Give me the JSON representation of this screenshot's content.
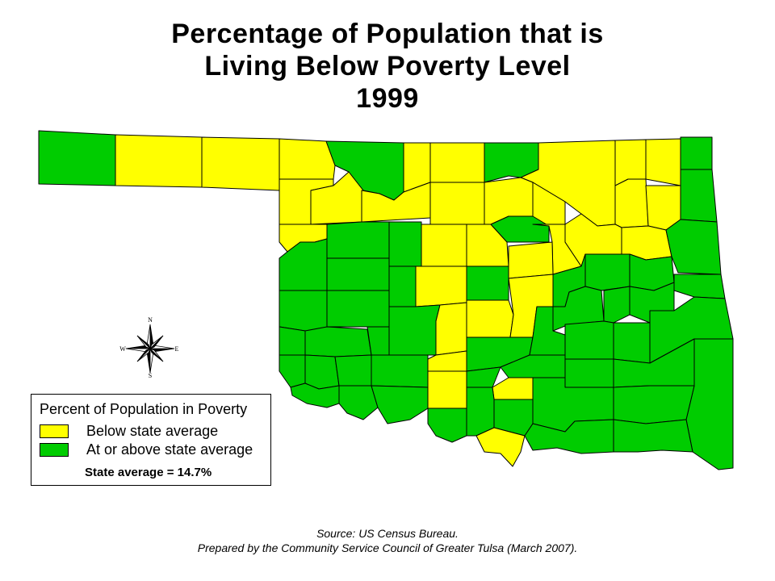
{
  "title": {
    "line1": "Percentage of Population that is",
    "line2": "Living Below Poverty Level",
    "line3": "1999"
  },
  "colors": {
    "below": "#ffff00",
    "at_or_above": "#00cc00",
    "border": "#000000"
  },
  "legend": {
    "title": "Percent of Population in Poverty",
    "items": [
      {
        "label": "Below state average",
        "color": "#ffff00"
      },
      {
        "label": "At or above state average",
        "color": "#00cc00"
      }
    ],
    "note": "State average = 14.7%"
  },
  "compass": {
    "n": "N",
    "s": "S",
    "e": "E",
    "w": "W",
    "icon": "compass-rose-icon"
  },
  "source": {
    "line1": "Source:  US Census Bureau.",
    "line2": "Prepared by the Community Service Council of Greater Tulsa (March 2007)."
  }
}
